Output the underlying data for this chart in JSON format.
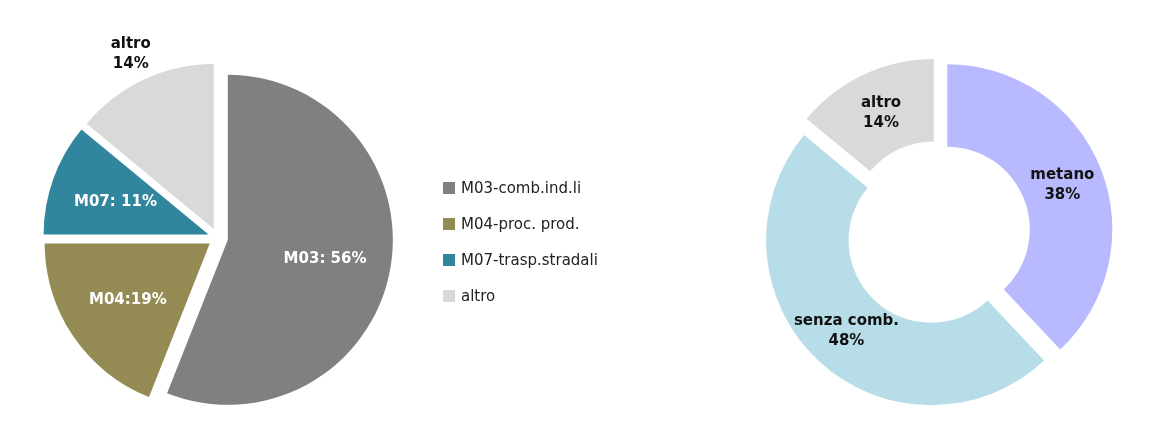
{
  "chart_data": [
    {
      "type": "pie",
      "categories": [
        "M03-comb.ind.li",
        "M04-proc. prod.",
        "M07-trasp.stradali",
        "altro"
      ],
      "values": [
        56,
        19,
        11,
        14
      ],
      "colors": [
        "#808080",
        "#948a54",
        "#31859c",
        "#d9d9d9"
      ],
      "value_labels": [
        "M03: 56%",
        "M04:19%",
        "M07: 11%",
        "altro\n14%"
      ],
      "legend": "right"
    },
    {
      "type": "donut",
      "categories": [
        "metano",
        "senza comb.",
        "altro"
      ],
      "values": [
        38,
        48,
        14
      ],
      "colors": [
        "#b9b9ff",
        "#b7dde8",
        "#d9d9d9"
      ],
      "value_labels": [
        "38%",
        "48%",
        "14%"
      ]
    }
  ]
}
